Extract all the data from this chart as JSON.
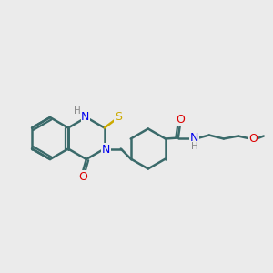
{
  "background_color": "#ebebeb",
  "bond_color": "#3a6a6a",
  "bond_width": 1.8,
  "atom_colors": {
    "N": "#0000ee",
    "O": "#dd0000",
    "S": "#ccaa00",
    "H": "#888888",
    "C": "#3a6a6a"
  },
  "figsize": [
    3.0,
    3.0
  ],
  "dpi": 100
}
